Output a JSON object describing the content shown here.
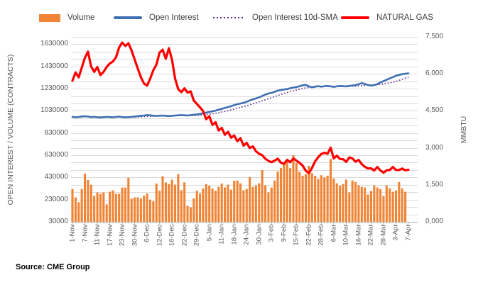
{
  "legend": {
    "items": [
      {
        "label": "Volume",
        "type": "bar",
        "color": "#EF8435"
      },
      {
        "label": "Open Interest",
        "type": "line",
        "color": "#3E6FB2"
      },
      {
        "label": "Open Interest 10d-SMA",
        "type": "dotted-line",
        "color": "#5C2E91"
      },
      {
        "label": "NATURAL GAS",
        "type": "line-thick",
        "color": "#FF0000"
      }
    ]
  },
  "axes": {
    "left_title": "OPEN INTEREST / VOLUME (CONTRACTS)",
    "right_title": "MMBTU",
    "left_ticks": [
      "30000",
      "230000",
      "430000",
      "630000",
      "830000",
      "1030000",
      "1230000",
      "1430000",
      "1630000"
    ],
    "right_ticks": [
      "0,000",
      "1,500",
      "3,000",
      "4,500",
      "6,000",
      "7,500"
    ]
  },
  "source_note": "Source: CME Group",
  "chart_data": {
    "type": "combo",
    "subtype": "bar+line, dual axis",
    "title": "",
    "xlabel": "",
    "ylabel_left": "OPEN INTEREST / VOLUME (CONTRACTS)",
    "ylabel_right": "MMBTU",
    "y_left_axis": {
      "min": 30000,
      "max": 1696675,
      "major_tick_step": 200000,
      "first_label": 30000,
      "last_label": 1630000
    },
    "y_right_axis": {
      "min": 0,
      "max": 7500,
      "tick_step": 1500
    },
    "gridlines": {
      "horizontal_minor_intervals": 25,
      "color": "#DBDBDB"
    },
    "x_axis_labels_shown": [
      "1-Nov",
      "7-Nov",
      "11-Nov",
      "17-Nov",
      "23-Nov",
      "30-Nov",
      "6-Dec",
      "12-Dec",
      "16-Dec",
      "22-Dec",
      "29-Dec",
      "5-Jan",
      "11-Jan",
      "18-Jan",
      "24-Jan",
      "30-Jan",
      "3-Feb",
      "9-Feb",
      "15-Feb",
      "22-Feb",
      "28-Feb",
      "6-Mar",
      "10-Mar",
      "16-Mar",
      "22-Mar",
      "28-Mar",
      "3-Apr",
      "7-Apr"
    ],
    "x_label_every_n_categories": 4,
    "categories": [
      "1-Nov",
      "2-Nov",
      "3-Nov",
      "4-Nov",
      "7-Nov",
      "8-Nov",
      "9-Nov",
      "10-Nov",
      "11-Nov",
      "14-Nov",
      "15-Nov",
      "16-Nov",
      "17-Nov",
      "18-Nov",
      "21-Nov",
      "22-Nov",
      "23-Nov",
      "25-Nov",
      "28-Nov",
      "29-Nov",
      "30-Nov",
      "1-Dec",
      "2-Dec",
      "5-Dec",
      "6-Dec",
      "7-Dec",
      "8-Dec",
      "9-Dec",
      "12-Dec",
      "13-Dec",
      "14-Dec",
      "15-Dec",
      "16-Dec",
      "19-Dec",
      "20-Dec",
      "21-Dec",
      "22-Dec",
      "23-Dec",
      "27-Dec",
      "28-Dec",
      "29-Dec",
      "30-Dec",
      "3-Jan",
      "4-Jan",
      "5-Jan",
      "6-Jan",
      "9-Jan",
      "10-Jan",
      "11-Jan",
      "12-Jan",
      "13-Jan",
      "17-Jan",
      "18-Jan",
      "19-Jan",
      "20-Jan",
      "23-Jan",
      "24-Jan",
      "25-Jan",
      "26-Jan",
      "27-Jan",
      "30-Jan",
      "31-Jan",
      "1-Feb",
      "2-Feb",
      "3-Feb",
      "6-Feb",
      "7-Feb",
      "8-Feb",
      "9-Feb",
      "10-Feb",
      "13-Feb",
      "14-Feb",
      "15-Feb",
      "16-Feb",
      "17-Feb",
      "21-Feb",
      "22-Feb",
      "23-Feb",
      "24-Feb",
      "27-Feb",
      "28-Feb",
      "1-Mar",
      "2-Mar",
      "3-Mar",
      "6-Mar",
      "7-Mar",
      "8-Mar",
      "9-Mar",
      "10-Mar",
      "13-Mar",
      "14-Mar",
      "15-Mar",
      "16-Mar",
      "17-Mar",
      "20-Mar",
      "21-Mar",
      "22-Mar",
      "23-Mar",
      "24-Mar",
      "27-Mar",
      "28-Mar",
      "29-Mar",
      "30-Mar",
      "31-Mar",
      "3-Apr",
      "4-Apr",
      "5-Apr",
      "6-Apr",
      "7-Apr"
    ],
    "series": [
      {
        "name": "Volume",
        "type": "bar",
        "axis": "left",
        "color": "#EF8435",
        "values": [
          326000,
          250000,
          206000,
          326000,
          465000,
          408000,
          364000,
          263000,
          295000,
          282000,
          295000,
          187000,
          301000,
          313000,
          282000,
          282000,
          339000,
          339000,
          427000,
          238000,
          250000,
          250000,
          240000,
          265000,
          285000,
          230000,
          215000,
          375000,
          310000,
          440000,
          385000,
          370000,
          410000,
          365000,
          460000,
          315000,
          385000,
          175000,
          160000,
          240000,
          310000,
          285000,
          330000,
          370000,
          355000,
          330000,
          310000,
          345000,
          375000,
          340000,
          365000,
          320000,
          400000,
          402000,
          377000,
          314000,
          326000,
          433000,
          345000,
          358000,
          377000,
          496000,
          358000,
          295000,
          339000,
          402000,
          483000,
          515000,
          560000,
          575000,
          515000,
          630000,
          560000,
          480000,
          445000,
          460000,
          535000,
          470000,
          445000,
          415000,
          450000,
          430000,
          445000,
          597000,
          420000,
          377000,
          355000,
          370000,
          410000,
          295000,
          402000,
          389000,
          360000,
          345000,
          339000,
          276000,
          308000,
          358000,
          339000,
          326000,
          263000,
          358000,
          332000,
          301000,
          313000,
          389000,
          332000,
          301000,
          0
        ]
      },
      {
        "name": "Open Interest",
        "type": "line",
        "axis": "left",
        "color": "#3E6FB2",
        "values": [
          976000,
          972000,
          975000,
          979000,
          982000,
          978000,
          974000,
          976000,
          972000,
          970000,
          973000,
          976000,
          974000,
          972000,
          975000,
          978000,
          974000,
          971000,
          973000,
          976000,
          979000,
          982000,
          985000,
          988000,
          992000,
          990000,
          986000,
          984000,
          986000,
          988000,
          985000,
          983000,
          985000,
          987000,
          990000,
          992000,
          990000,
          988000,
          992000,
          995000,
          998000,
          1002000,
          1008000,
          1014000,
          1020000,
          1026000,
          1032000,
          1040000,
          1048000,
          1056000,
          1064000,
          1072000,
          1082000,
          1090000,
          1096000,
          1102000,
          1112000,
          1124000,
          1134000,
          1142000,
          1152000,
          1164000,
          1176000,
          1186000,
          1192000,
          1202000,
          1212000,
          1218000,
          1222000,
          1226000,
          1234000,
          1240000,
          1244000,
          1252000,
          1260000,
          1264000,
          1250000,
          1242000,
          1248000,
          1252000,
          1248000,
          1252000,
          1254000,
          1250000,
          1246000,
          1250000,
          1254000,
          1252000,
          1250000,
          1254000,
          1258000,
          1262000,
          1270000,
          1280000,
          1272000,
          1262000,
          1258000,
          1262000,
          1270000,
          1286000,
          1298000,
          1310000,
          1322000,
          1334000,
          1346000,
          1354000,
          1360000,
          1364000,
          1368000
        ]
      },
      {
        "name": "Open Interest 10d-SMA",
        "type": "dotted-line",
        "axis": "left",
        "color": "#5C2E91",
        "values": [
          976000,
          974000,
          974300,
          975500,
          976800,
          977000,
          976600,
          976500,
          976000,
          975500,
          975400,
          975300,
          975100,
          974800,
          974600,
          974900,
          974900,
          974400,
          974200,
          974000,
          974300,
          975400,
          976500,
          978100,
          979800,
          981000,
          982200,
          983500,
          984800,
          986000,
          986600,
          986600,
          986700,
          986600,
          986400,
          986600,
          987000,
          987400,
          988000,
          988700,
          990000,
          991900,
          994200,
          996900,
          999900,
          1003300,
          1007500,
          1012700,
          1018300,
          1024400,
          1031000,
          1038000,
          1045400,
          1053000,
          1060600,
          1068200,
          1076200,
          1084600,
          1093200,
          1101800,
          1110600,
          1119800,
          1129200,
          1138800,
          1148400,
          1158400,
          1168400,
          1177800,
          1186600,
          1195000,
          1203200,
          1210800,
          1217600,
          1224200,
          1231000,
          1237200,
          1241000,
          1243400,
          1246000,
          1248600,
          1250000,
          1251200,
          1252200,
          1252000,
          1250600,
          1249200,
          1249600,
          1250600,
          1250800,
          1251000,
          1252000,
          1253000,
          1254600,
          1257600,
          1260200,
          1261400,
          1261800,
          1262800,
          1264800,
          1268000,
          1272000,
          1276800,
          1282000,
          1287400,
          1294800,
          1304000,
          1314200,
          1324400,
          1334200
        ]
      },
      {
        "name": "NATURAL GAS",
        "type": "line",
        "axis": "right",
        "color": "#FF0000",
        "values": [
          5720,
          6060,
          5860,
          6250,
          6650,
          6900,
          6300,
          6080,
          6280,
          5950,
          6080,
          6280,
          6420,
          6500,
          6670,
          7070,
          7270,
          7130,
          7240,
          6950,
          6580,
          6210,
          5860,
          5610,
          5520,
          5810,
          6150,
          6380,
          6860,
          6980,
          6610,
          7040,
          6580,
          5810,
          5380,
          5260,
          5410,
          5240,
          5290,
          4920,
          4780,
          4640,
          4490,
          4160,
          4280,
          3930,
          4040,
          3700,
          3810,
          3530,
          3650,
          3410,
          3500,
          3270,
          3390,
          3090,
          3200,
          2990,
          3060,
          2860,
          2760,
          2700,
          2560,
          2470,
          2420,
          2480,
          2560,
          2400,
          2350,
          2510,
          2420,
          2570,
          2480,
          2390,
          2280,
          2070,
          1970,
          2180,
          2450,
          2620,
          2750,
          2800,
          2760,
          3010,
          2570,
          2680,
          2550,
          2540,
          2430,
          2610,
          2570,
          2440,
          2510,
          2340,
          2230,
          2160,
          2170,
          2080,
          2220,
          2080,
          1990,
          2090,
          2100,
          2220,
          2100,
          2100,
          2160,
          2090,
          2110
        ]
      }
    ]
  }
}
